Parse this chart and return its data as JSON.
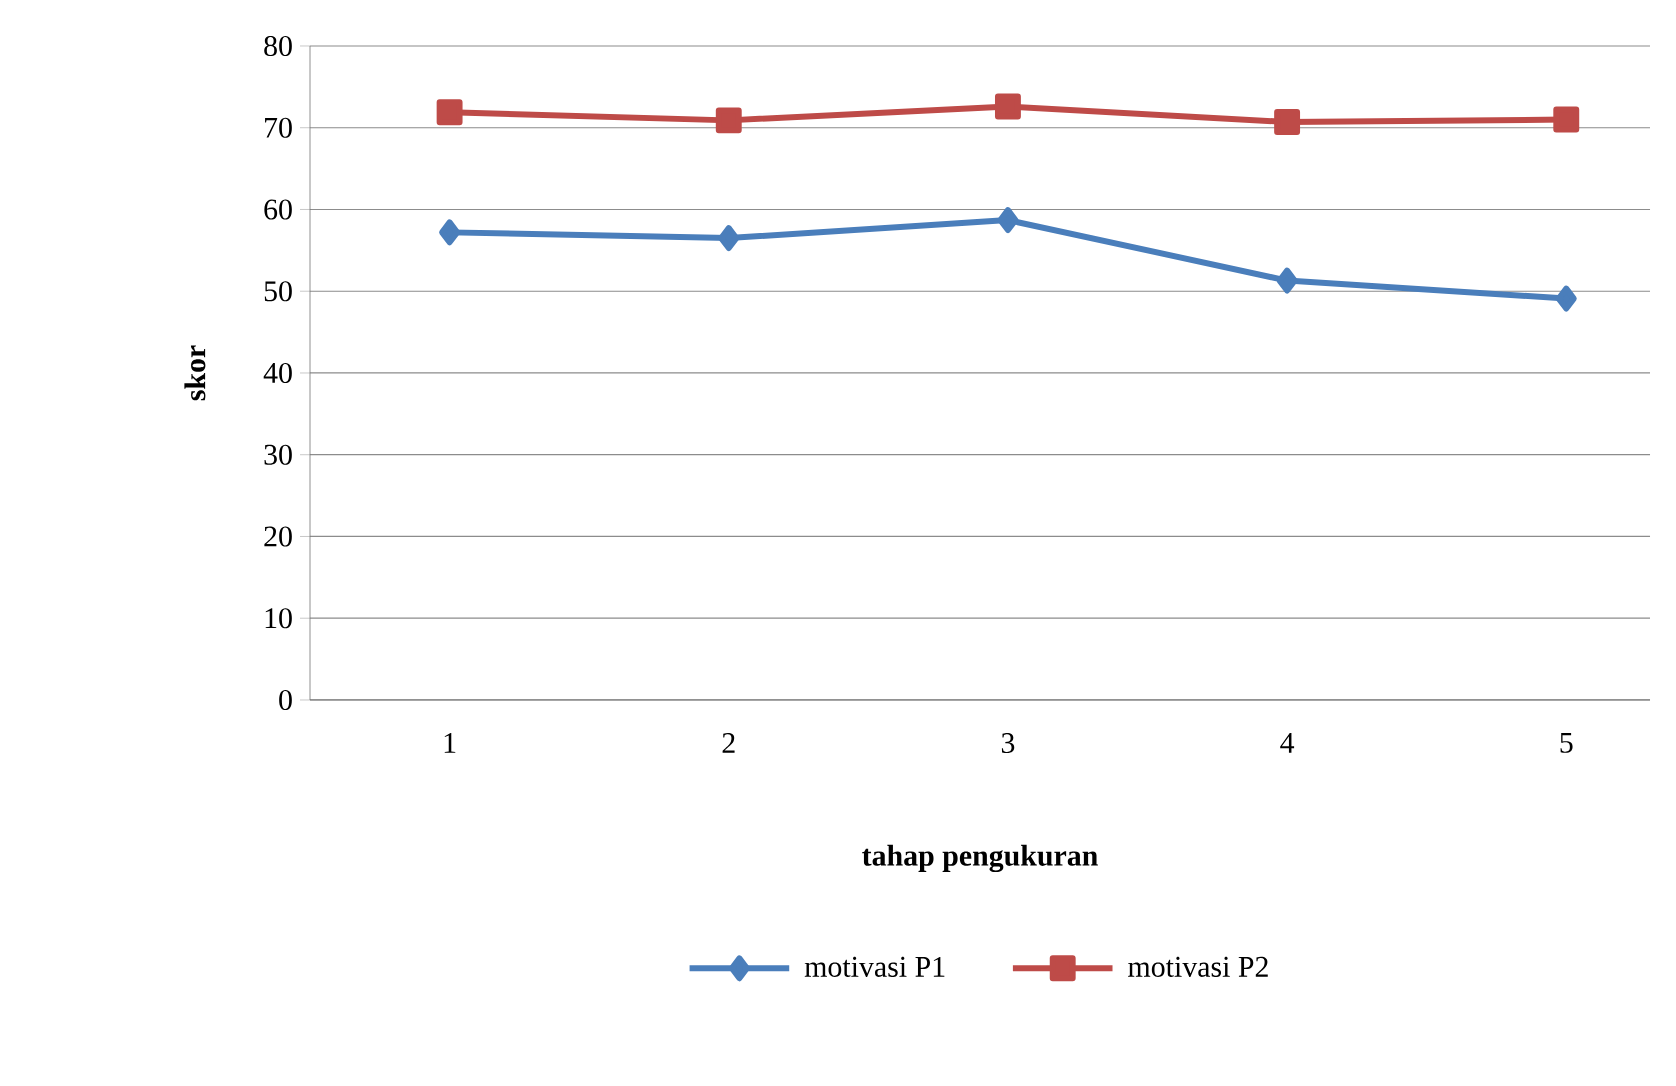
{
  "chart_data": {
    "type": "line",
    "xlabel": "tahap pengukuran",
    "ylabel": "skor",
    "categories": [
      "1",
      "2",
      "3",
      "4",
      "5"
    ],
    "series": [
      {
        "name": "motivasi P1",
        "color": "#4a7ebb",
        "marker": "diamond",
        "values": [
          57.2,
          56.5,
          58.7,
          51.3,
          49.1
        ]
      },
      {
        "name": "motivasi P2",
        "color": "#be4b48",
        "marker": "square",
        "values": [
          71.9,
          70.9,
          72.6,
          70.7,
          71.0
        ]
      }
    ],
    "ylim": [
      0,
      80
    ],
    "yticks": [
      0,
      10,
      20,
      30,
      40,
      50,
      60,
      70,
      80
    ],
    "grid": "y",
    "legend": "bottom"
  }
}
